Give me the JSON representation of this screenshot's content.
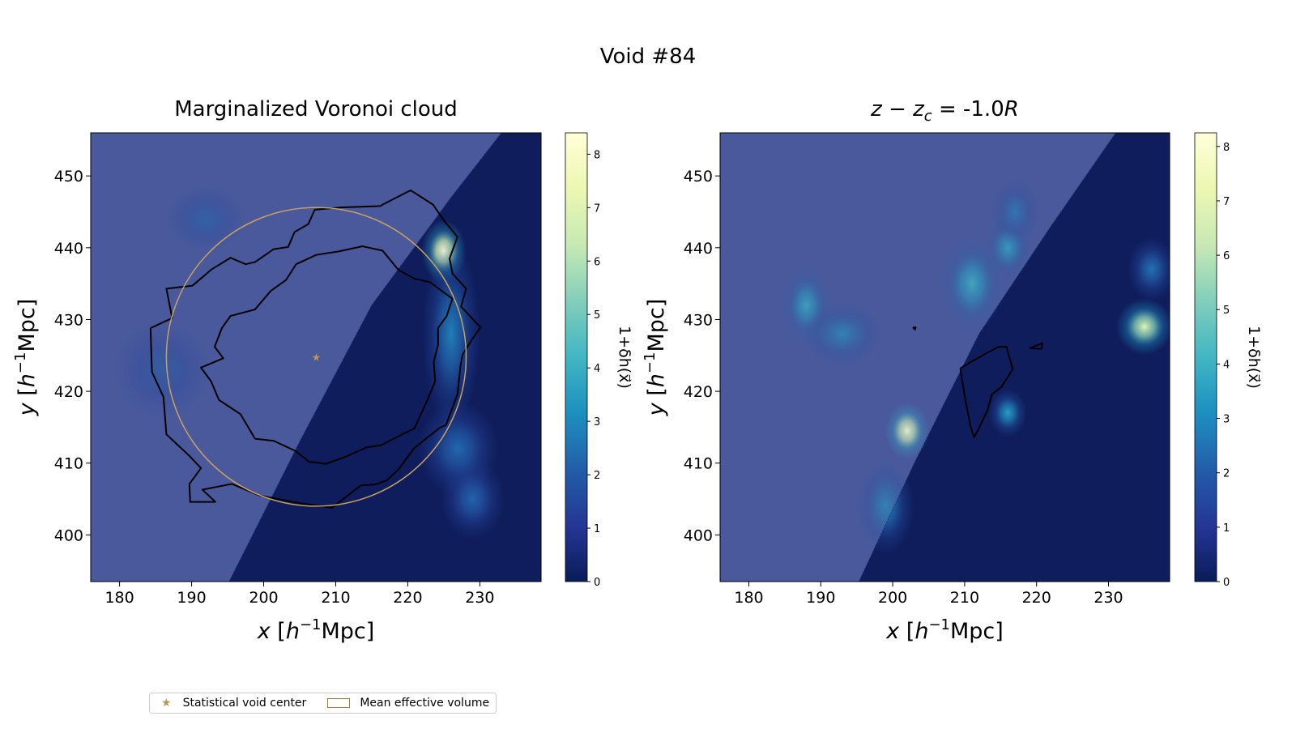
{
  "suptitle": "Void #84",
  "colors": {
    "background_blue": "#3b4f9c",
    "deep_blue": "#0f1d5c",
    "circle": "#c8a060",
    "star": "#b8945a",
    "contour": "#000000"
  },
  "legend": {
    "center_label": "Statistical void center",
    "volume_label": "Mean effective volume",
    "star_icon": "★"
  },
  "chart_data": [
    {
      "type": "heatmap",
      "title": "Marginalized Voronoi cloud",
      "xlabel_var": "x",
      "ylabel_var": "y",
      "unit_prefix": "[h",
      "unit_exp": "−1",
      "unit_suffix": "Mpc]",
      "xlim": [
        176,
        238.5
      ],
      "ylim": [
        393.5,
        456
      ],
      "xticks": [
        180,
        190,
        200,
        210,
        220,
        230
      ],
      "yticks": [
        400,
        410,
        420,
        430,
        440,
        450
      ],
      "colorbar": {
        "label": "1+δh(x⃗)",
        "range": [
          0,
          8.4
        ],
        "ticks": [
          0,
          1,
          2,
          3,
          4,
          5,
          6,
          7,
          8
        ]
      },
      "void_center": [
        207.3,
        424.8
      ],
      "mean_effective_radius": 20.8,
      "survey_boundary": [
        [
          195.2,
          393.5
        ],
        [
          205,
          413
        ],
        [
          215,
          432
        ],
        [
          226,
          447
        ],
        [
          233,
          456
        ]
      ],
      "blobs": [
        {
          "x": 225,
          "y": 439.5,
          "sx": 1.4,
          "sy": 2.0,
          "amp": 7.5
        },
        {
          "x": 226,
          "y": 428,
          "sx": 1.8,
          "sy": 6.0,
          "amp": 1.8
        },
        {
          "x": 227,
          "y": 412,
          "sx": 2.5,
          "sy": 3.0,
          "amp": 1.3
        },
        {
          "x": 229,
          "y": 405,
          "sx": 2.0,
          "sy": 2.5,
          "amp": 1.2
        },
        {
          "x": 192,
          "y": 444,
          "sx": 2.5,
          "sy": 2.0,
          "amp": 1.0
        },
        {
          "x": 186,
          "y": 423,
          "sx": 3.0,
          "sy": 3.0,
          "amp": 0.8
        }
      ],
      "contours": [
        [
          [
            184.3,
            428.8
          ],
          [
            187.3,
            430.2
          ],
          [
            186.5,
            434.3
          ],
          [
            190.1,
            434.7
          ],
          [
            192.8,
            437
          ],
          [
            195.4,
            438.6
          ],
          [
            197.5,
            437.7
          ],
          [
            198.8,
            438
          ],
          [
            201.4,
            439.8
          ],
          [
            203.4,
            440.1
          ],
          [
            204.3,
            442.2
          ],
          [
            206.2,
            443.3
          ],
          [
            207.1,
            445.3
          ],
          [
            210.6,
            445.6
          ],
          [
            216.2,
            445.8
          ],
          [
            216.5,
            446
          ],
          [
            220.4,
            448
          ],
          [
            223.5,
            446
          ],
          [
            225.1,
            443.7
          ],
          [
            226.9,
            441.5
          ],
          [
            225.8,
            438.5
          ],
          [
            226.2,
            436.4
          ],
          [
            228.1,
            434.3
          ],
          [
            227.4,
            431.8
          ],
          [
            230.1,
            428.9
          ],
          [
            228.9,
            427.2
          ],
          [
            227.6,
            425.1
          ],
          [
            227.3,
            423.4
          ],
          [
            226.9,
            419.6
          ],
          [
            225.3,
            415.3
          ],
          [
            224.4,
            414.9
          ],
          [
            220.9,
            412.1
          ],
          [
            218.7,
            409.1
          ],
          [
            217.1,
            407.6
          ],
          [
            215.4,
            407
          ],
          [
            213.5,
            406.9
          ],
          [
            209.5,
            403.8
          ],
          [
            205.1,
            404.4
          ],
          [
            199.4,
            405.5
          ],
          [
            195.6,
            407.1
          ],
          [
            191.5,
            406.3
          ],
          [
            193.3,
            404.6
          ],
          [
            189.8,
            404.6
          ],
          [
            189.7,
            407.1
          ],
          [
            191.3,
            409.3
          ],
          [
            189.6,
            411.1
          ],
          [
            186.5,
            414
          ],
          [
            186.1,
            419.2
          ],
          [
            184.5,
            422.7
          ],
          [
            184.3,
            428.8
          ]
        ],
        [
          [
            216.5,
            439.6
          ],
          [
            218.7,
            436.9
          ],
          [
            220.9,
            435.7
          ],
          [
            223.1,
            435.2
          ],
          [
            224.7,
            434
          ],
          [
            226.2,
            432.9
          ],
          [
            225.4,
            430.5
          ],
          [
            224.2,
            428.8
          ],
          [
            224.2,
            426.5
          ],
          [
            223.6,
            424.1
          ],
          [
            223.8,
            421.4
          ],
          [
            222.9,
            419.2
          ],
          [
            222.1,
            417.4
          ],
          [
            220.9,
            414.8
          ],
          [
            219.6,
            414.2
          ],
          [
            216.3,
            412.5
          ],
          [
            214.3,
            412.2
          ],
          [
            211.4,
            410.9
          ],
          [
            208.6,
            409.9
          ],
          [
            206.3,
            410.2
          ],
          [
            204.4,
            411.7
          ],
          [
            201.4,
            413.1
          ],
          [
            198.8,
            413.4
          ],
          [
            196.8,
            416.8
          ],
          [
            193.8,
            418.8
          ],
          [
            192.7,
            421.4
          ],
          [
            191.3,
            423.3
          ],
          [
            194.4,
            424.6
          ],
          [
            193.2,
            426.2
          ],
          [
            194.2,
            428.8
          ],
          [
            195.4,
            430.5
          ],
          [
            198.8,
            431.4
          ],
          [
            201,
            434
          ],
          [
            203.1,
            435.5
          ],
          [
            204.5,
            437.7
          ],
          [
            207.3,
            439
          ],
          [
            210.5,
            439.5
          ],
          [
            213.7,
            440.2
          ],
          [
            216.5,
            439.6
          ]
        ]
      ]
    },
    {
      "type": "heatmap",
      "title_lhs": "z − z",
      "title_sub": "c",
      "title_eq": " = -1.0",
      "title_r": "R",
      "xlabel_var": "x",
      "ylabel_var": "y",
      "unit_prefix": "[h",
      "unit_exp": "−1",
      "unit_suffix": "Mpc]",
      "xlim": [
        176,
        238.5
      ],
      "ylim": [
        393.5,
        456
      ],
      "xticks": [
        180,
        190,
        200,
        210,
        220,
        230
      ],
      "yticks": [
        400,
        410,
        420,
        430,
        440,
        450
      ],
      "colorbar": {
        "label": "1+δh(x⃗)",
        "range": [
          0,
          8.25
        ],
        "ticks": [
          0,
          1,
          2,
          3,
          4,
          5,
          6,
          7,
          8
        ]
      },
      "survey_boundary": [
        [
          195.3,
          393.5
        ],
        [
          203,
          410
        ],
        [
          212,
          428
        ],
        [
          222,
          443
        ],
        [
          231,
          456
        ]
      ],
      "blobs": [
        {
          "x": 202,
          "y": 414.5,
          "sx": 1.4,
          "sy": 1.8,
          "amp": 7.0
        },
        {
          "x": 235,
          "y": 429,
          "sx": 1.8,
          "sy": 1.8,
          "amp": 6.0
        },
        {
          "x": 211,
          "y": 435,
          "sx": 2.0,
          "sy": 3.0,
          "amp": 2.8
        },
        {
          "x": 216,
          "y": 440,
          "sx": 1.5,
          "sy": 2.0,
          "amp": 2.4
        },
        {
          "x": 188,
          "y": 432,
          "sx": 1.6,
          "sy": 2.5,
          "amp": 2.6
        },
        {
          "x": 193,
          "y": 428,
          "sx": 2.5,
          "sy": 2.0,
          "amp": 1.8
        },
        {
          "x": 216,
          "y": 417,
          "sx": 1.2,
          "sy": 1.5,
          "amp": 2.5
        },
        {
          "x": 199,
          "y": 404,
          "sx": 1.8,
          "sy": 3.0,
          "amp": 1.8
        },
        {
          "x": 217,
          "y": 445,
          "sx": 1.5,
          "sy": 2.0,
          "amp": 1.5
        },
        {
          "x": 236,
          "y": 437,
          "sx": 1.5,
          "sy": 2.0,
          "amp": 1.5
        }
      ],
      "contours": [
        [
          [
            209.4,
            423.2
          ],
          [
            212.3,
            424.9
          ],
          [
            214.7,
            426.2
          ],
          [
            215.8,
            426.2
          ],
          [
            216.7,
            423.1
          ],
          [
            215.1,
            420.6
          ],
          [
            213.8,
            419.6
          ],
          [
            213.2,
            417.4
          ],
          [
            211.9,
            414.7
          ],
          [
            211.3,
            413.6
          ],
          [
            210.8,
            415.2
          ],
          [
            210.1,
            418.8
          ],
          [
            209.4,
            423.2
          ]
        ],
        [
          [
            219,
            426
          ],
          [
            220.8,
            426.7
          ],
          [
            220.7,
            425.9
          ],
          [
            219,
            426
          ]
        ],
        [
          [
            202.8,
            428.9
          ],
          [
            203.2,
            428.9
          ],
          [
            203.1,
            428.6
          ],
          [
            202.8,
            428.9
          ]
        ]
      ]
    }
  ]
}
